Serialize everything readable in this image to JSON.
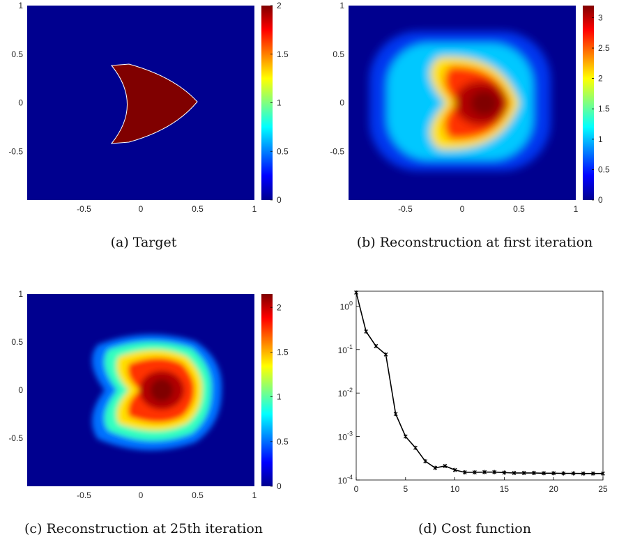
{
  "captions": {
    "a": "(a) Target",
    "b": "(b) Reconstruction at first iteration",
    "c": "(c) Reconstruction at 25th iteration",
    "d": "(d) Cost function"
  },
  "chart_data": [
    {
      "id": "a",
      "type": "heatmap",
      "title": "",
      "xlim": [
        -1,
        1
      ],
      "ylim": [
        -1,
        1
      ],
      "xticks": [
        "-0.5",
        "0",
        "0.5",
        "1"
      ],
      "yticks": [
        "1",
        "0.5",
        "0",
        "-0.5"
      ],
      "colorbar": {
        "min": 0,
        "max": 2,
        "ticks": [
          "0",
          "0.5",
          "1",
          "1.5",
          "2"
        ],
        "colormap": "jet"
      },
      "description_of_field": "crescent-shaped inclusion of value 2 on zero background"
    },
    {
      "id": "b",
      "type": "heatmap",
      "title": "",
      "xlim": [
        -1,
        1
      ],
      "ylim": [
        -1,
        1
      ],
      "xticks": [
        "-0.5",
        "0",
        "0.5",
        "1"
      ],
      "yticks": [
        "1",
        "0.5",
        "0",
        "-0.5"
      ],
      "colorbar": {
        "min": 0,
        "max": 3.2,
        "ticks": [
          "0",
          "0.5",
          "1",
          "1.5",
          "2",
          "2.5",
          "3"
        ],
        "colormap": "jet"
      }
    },
    {
      "id": "c",
      "type": "heatmap",
      "title": "",
      "xlim": [
        -1,
        1
      ],
      "ylim": [
        -1,
        1
      ],
      "xticks": [
        "-0.5",
        "0",
        "0.5",
        "1"
      ],
      "yticks": [
        "1",
        "0.5",
        "0",
        "-0.5"
      ],
      "colorbar": {
        "min": 0,
        "max": 2.15,
        "ticks": [
          "0",
          "0.5",
          "1",
          "1.5",
          "2"
        ],
        "colormap": "jet"
      }
    },
    {
      "id": "d",
      "type": "line",
      "title": "",
      "xlabel": "",
      "ylabel": "",
      "yscale": "log",
      "xlim": [
        0,
        25
      ],
      "ylim": [
        0.0001,
        2.2
      ],
      "xticks": [
        "0",
        "5",
        "10",
        "15",
        "20",
        "25"
      ],
      "yticks": [
        "10^0",
        "10^-1",
        "10^-2",
        "10^-3",
        "10^-4"
      ],
      "x": [
        0,
        1,
        2,
        3,
        4,
        5,
        6,
        7,
        8,
        9,
        10,
        11,
        12,
        13,
        14,
        15,
        16,
        17,
        18,
        19,
        20,
        21,
        22,
        23,
        24,
        25
      ],
      "y": [
        2.05,
        0.26,
        0.12,
        0.077,
        0.0033,
        0.001,
        0.00055,
        0.00027,
        0.00019,
        0.00021,
        0.00017,
        0.00015,
        0.00015,
        0.000152,
        0.000152,
        0.000148,
        0.000145,
        0.000145,
        0.000145,
        0.000143,
        0.000143,
        0.000142,
        0.000142,
        0.000141,
        0.000141,
        0.000141
      ],
      "color": "#000000"
    }
  ]
}
